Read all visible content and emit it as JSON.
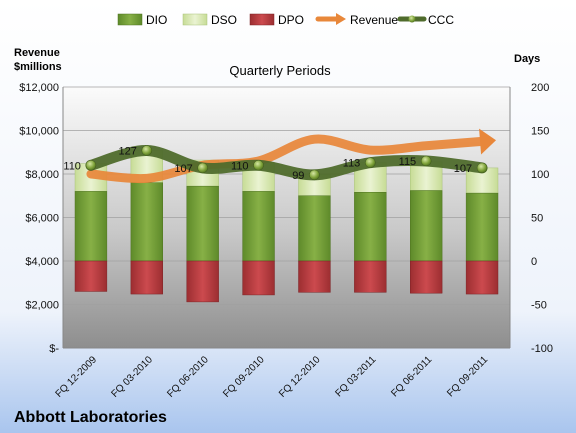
{
  "chart_data": {
    "type": "bar",
    "title": "Quarterly Periods",
    "company": "Abbott Laboratories",
    "left_axis_label": [
      "Revenue",
      "$millions"
    ],
    "right_axis_label": "Days",
    "legend_position": "top",
    "categories": [
      "FQ 12-2009",
      "FQ 03-2010",
      "FQ 06-2010",
      "FQ 09-2010",
      "FQ 12-2010",
      "FQ 03-2011",
      "FQ 06-2011",
      "FQ 09-2011"
    ],
    "left_axis": {
      "min": 0,
      "max": 12000,
      "ticks": [
        "$-",
        "$2,000",
        "$4,000",
        "$6,000",
        "$8,000",
        "$10,000",
        "$12,000"
      ]
    },
    "right_axis": {
      "min": -100,
      "max": 200,
      "ticks": [
        "-100",
        "-50",
        "0",
        "50",
        "100",
        "150",
        "200"
      ]
    },
    "grid": true,
    "series": [
      {
        "name": "DIO",
        "kind": "stacked-bar",
        "axis": "days",
        "color": "#6f9a34",
        "values": [
          80,
          90,
          86,
          80,
          75,
          79,
          81,
          78
        ]
      },
      {
        "name": "DSO",
        "kind": "stacked-bar",
        "axis": "days",
        "color": "#d8e8b0",
        "values": [
          32,
          37,
          30,
          33,
          24,
          34,
          33,
          29
        ]
      },
      {
        "name": "DPO",
        "kind": "negative-bar",
        "axis": "days",
        "color": "#b73a3e",
        "values": [
          -35,
          -38,
          -47,
          -39,
          -36,
          -36,
          -37,
          -38
        ]
      },
      {
        "name": "Revenue",
        "kind": "line",
        "axis": "revenue",
        "color": "#e8873a",
        "values": [
          8000,
          7800,
          8400,
          8600,
          9600,
          9100,
          9300,
          9500
        ]
      },
      {
        "name": "CCC",
        "kind": "line",
        "axis": "days",
        "color": "#4f6b2c",
        "values": [
          110,
          127,
          107,
          110,
          99,
          113,
          115,
          107
        ],
        "labels": [
          "110",
          "127",
          "107",
          "110",
          "99",
          "113",
          "115",
          "107"
        ]
      }
    ]
  }
}
